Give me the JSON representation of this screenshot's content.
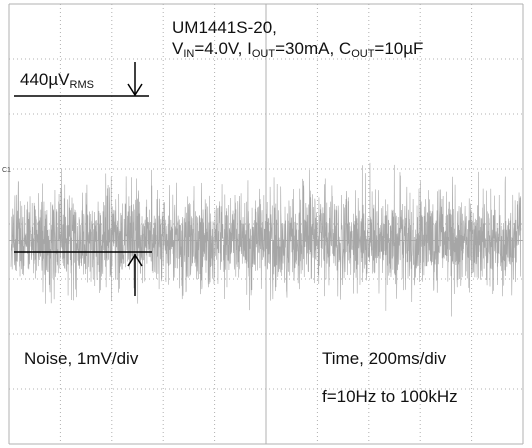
{
  "chart_data": {
    "type": "line",
    "title_line1": "UM1441S-20,",
    "conditions": {
      "vin_sym": "V",
      "vin_sub": "IN",
      "vin_val": "=4.0V, ",
      "iout_sym": "I",
      "iout_sub": "OUT",
      "iout_val": "=30mA, ",
      "cout_sym": "C",
      "cout_sub": "OUT",
      "cout_val": "=10µF"
    },
    "annotation": {
      "value": "440µV",
      "unit_sub": "RMS"
    },
    "y_axis_label": "Noise, 1mV/div",
    "x_axis_label": "Time, 200ms/div",
    "bandwidth": "f=10Hz to 100kHz",
    "channel_marker": "C1",
    "grid": {
      "divisions_x": 10,
      "divisions_y": 8,
      "on": true
    },
    "xlim": [
      0,
      2000
    ],
    "x_unit": "ms",
    "ylim_mV": [
      -3.7,
      4.3
    ],
    "series": [
      {
        "signal": "output noise",
        "rms_uV": 440,
        "mean_mV": 0.0,
        "peak_to_peak_mV": 3.8
      }
    ],
    "trace_color": "#a6a6a6",
    "grid_color": "#b0b0b0"
  }
}
